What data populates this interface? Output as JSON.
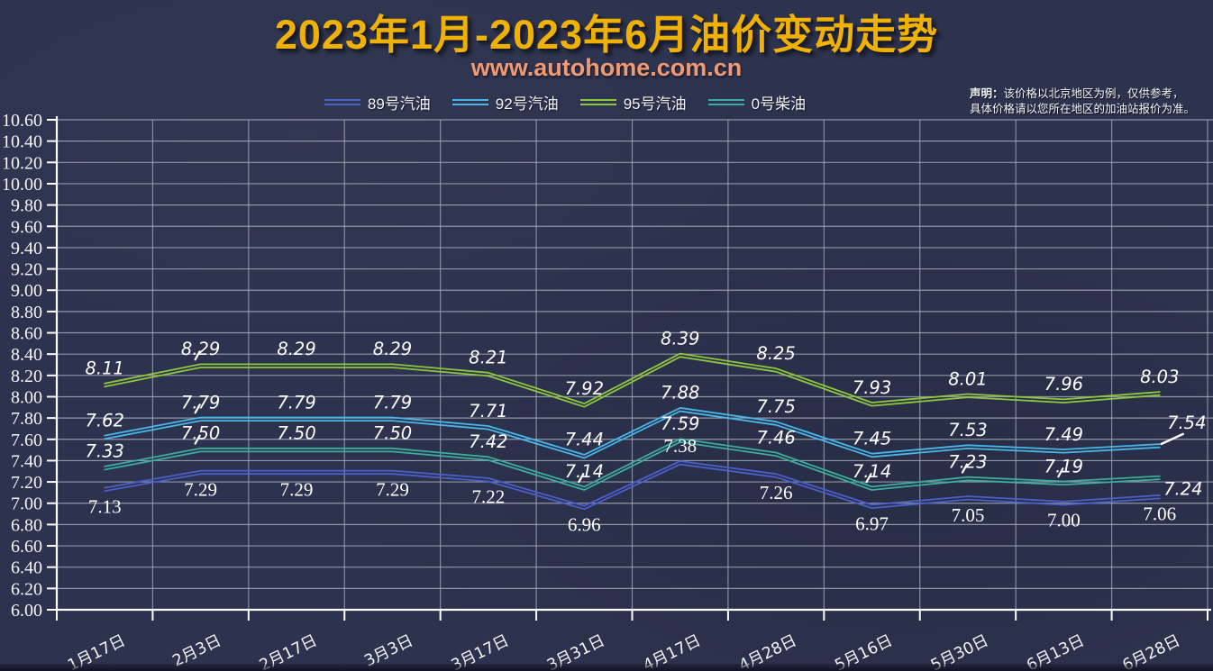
{
  "page": {
    "title": "2023年1月-2023年6月油价变动走势",
    "subtitle": "www.autohome.com.cn",
    "disclaimer_bold": "声明：",
    "disclaimer_line1": "该价格以北京地区为例，仅供参考，",
    "disclaimer_line2": "具体价格请以您所在地区的加油站报价为准。"
  },
  "colors": {
    "background": "#2d324e",
    "title": "#EFB104",
    "subtitle": "#F09A74",
    "grid": "#a9aebc",
    "axis": "#ffffff",
    "data_label": "#ffffff",
    "tick_label": "#f5f5f7"
  },
  "chart_data": {
    "type": "line",
    "title": "2023年1月-2023年6月油价变动走势",
    "categories": [
      "1月17日",
      "2月3日",
      "2月17日",
      "3月3日",
      "3月17日",
      "3月31日",
      "4月17日",
      "4月28日",
      "5月16日",
      "5月30日",
      "6月13日",
      "6月28日"
    ],
    "series": [
      {
        "name": "89号汽油",
        "color": "#4a5fc8",
        "values": [
          7.13,
          7.29,
          7.29,
          7.29,
          7.22,
          6.96,
          7.38,
          7.26,
          6.97,
          7.05,
          7.0,
          7.06
        ]
      },
      {
        "name": "92号汽油",
        "color": "#49b7e6",
        "values": [
          7.62,
          7.79,
          7.79,
          7.79,
          7.71,
          7.44,
          7.88,
          7.75,
          7.45,
          7.53,
          7.49,
          7.54
        ]
      },
      {
        "name": "95号汽油",
        "color": "#8ec73e",
        "values": [
          8.11,
          8.29,
          8.29,
          8.29,
          8.21,
          7.92,
          8.39,
          8.25,
          7.93,
          8.01,
          7.96,
          8.03
        ]
      },
      {
        "name": "0号柴油",
        "color": "#3cac9c",
        "values": [
          7.33,
          7.5,
          7.5,
          7.5,
          7.42,
          7.14,
          7.59,
          7.46,
          7.14,
          7.23,
          7.19,
          7.24
        ]
      }
    ],
    "ylim": [
      6.0,
      10.6
    ],
    "y_step": 0.2,
    "y_ticks": [
      "6.00",
      "6.20",
      "6.40",
      "6.60",
      "6.80",
      "7.00",
      "7.20",
      "7.40",
      "7.60",
      "7.80",
      "8.00",
      "8.20",
      "8.40",
      "8.60",
      "8.80",
      "9.00",
      "9.20",
      "9.40",
      "9.60",
      "9.80",
      "10.00",
      "10.20",
      "10.40",
      "10.60"
    ],
    "grid": true,
    "legend_position": "top",
    "data_labels": true
  }
}
